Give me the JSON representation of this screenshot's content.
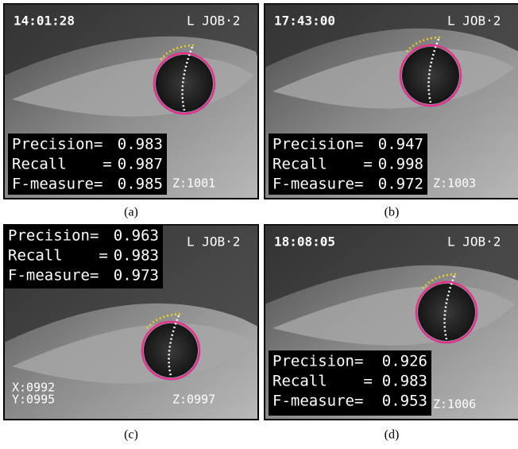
{
  "panels": [
    {
      "timestamp": "14:01:28",
      "job": "L JOB·2",
      "metrics": [
        {
          "label": "Precision=",
          "value": "0.983"
        },
        {
          "label": "Recall    =",
          "value": "0.987"
        },
        {
          "label": "F-measure=",
          "value": "0.985"
        }
      ],
      "z": "Z:1001",
      "caption": "(a)"
    },
    {
      "timestamp": "17:43:00",
      "job": "L JOB·2",
      "metrics": [
        {
          "label": "Precision=",
          "value": "0.947"
        },
        {
          "label": "Recall    =",
          "value": "0.998"
        },
        {
          "label": "F-measure=",
          "value": "0.972"
        }
      ],
      "z": "Z:1003",
      "caption": "(b)"
    },
    {
      "job": "L JOB·2",
      "metrics": [
        {
          "label": "Precision=",
          "value": "0.963"
        },
        {
          "label": "Recall    =",
          "value": "0.983"
        },
        {
          "label": "F-measure=",
          "value": "0.973"
        }
      ],
      "x": "X:0992",
      "y": "Y:0995",
      "z": "Z:0997",
      "caption": "(c)"
    },
    {
      "timestamp": "18:08:05",
      "job": "L JOB·2",
      "metrics": [
        {
          "label": "Precision=",
          "value": "0.926"
        },
        {
          "label": "Recall    =",
          "value": "0.983"
        },
        {
          "label": "F-measure=",
          "value": "0.953"
        }
      ],
      "z": "Z:1006",
      "caption": "(d)"
    }
  ]
}
